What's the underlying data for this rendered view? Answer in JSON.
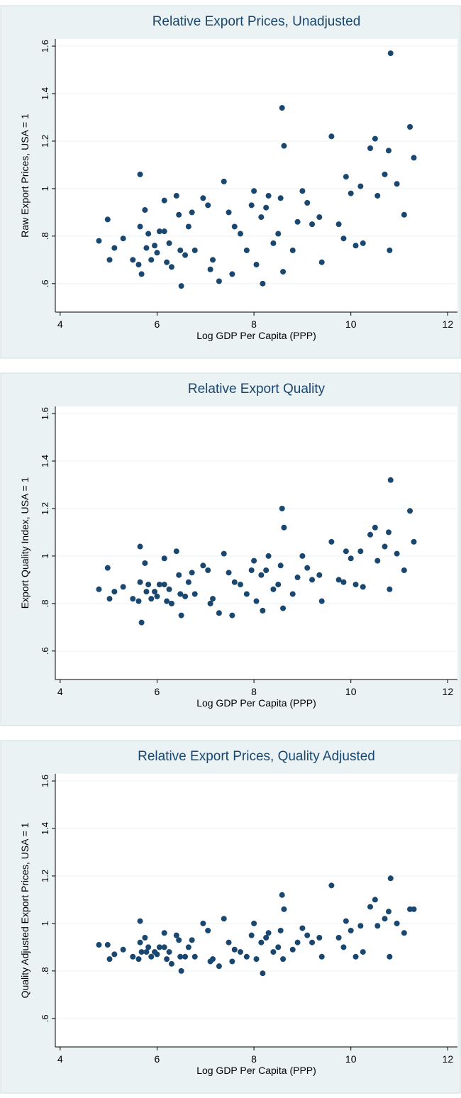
{
  "chart_data": [
    {
      "type": "scatter",
      "title": "Relative Export Prices, Unadjusted",
      "x_label": "Log GDP Per Capita (PPP)",
      "y_label": "Raw Export Prices, USA = 1",
      "color": "#1a476f",
      "grid": true,
      "xlim": [
        3.9,
        12.2
      ],
      "ylim": [
        0.48,
        1.63
      ],
      "xticks": [
        4,
        6,
        8,
        10,
        12
      ],
      "yticks": [
        {
          "value": 0.6,
          "label": ".6"
        },
        {
          "value": 0.8,
          "label": ".8"
        },
        1,
        1.2,
        1.4,
        1.6
      ],
      "x": [
        4.8,
        4.98,
        5.02,
        5.12,
        5.3,
        5.5,
        5.62,
        5.65,
        5.65,
        5.68,
        5.75,
        5.78,
        5.82,
        5.88,
        5.95,
        6.0,
        6.05,
        6.15,
        6.15,
        6.2,
        6.25,
        6.3,
        6.4,
        6.45,
        6.48,
        6.5,
        6.58,
        6.65,
        6.72,
        6.78,
        6.95,
        7.05,
        7.1,
        7.15,
        7.28,
        7.38,
        7.48,
        7.55,
        7.6,
        7.72,
        7.85,
        7.95,
        8.0,
        8.05,
        8.15,
        8.18,
        8.25,
        8.3,
        8.4,
        8.5,
        8.55,
        8.58,
        8.6,
        8.62,
        8.8,
        8.9,
        9.0,
        9.1,
        9.2,
        9.35,
        9.4,
        9.6,
        9.75,
        9.85,
        9.9,
        10.0,
        10.1,
        10.2,
        10.25,
        10.4,
        10.5,
        10.55,
        10.7,
        10.78,
        10.8,
        10.82,
        10.95,
        11.1,
        11.22,
        11.3
      ],
      "y": [
        0.78,
        0.87,
        0.7,
        0.75,
        0.79,
        0.7,
        0.68,
        1.06,
        0.84,
        0.64,
        0.91,
        0.75,
        0.81,
        0.7,
        0.76,
        0.73,
        0.82,
        0.95,
        0.82,
        0.69,
        0.77,
        0.67,
        0.97,
        0.89,
        0.74,
        0.59,
        0.72,
        0.84,
        0.9,
        0.74,
        0.96,
        0.93,
        0.66,
        0.7,
        0.61,
        1.03,
        0.9,
        0.64,
        0.84,
        0.81,
        0.74,
        0.93,
        0.99,
        0.68,
        0.88,
        0.6,
        0.92,
        0.97,
        0.77,
        0.81,
        0.96,
        1.34,
        0.65,
        1.18,
        0.74,
        0.86,
        0.99,
        0.94,
        0.85,
        0.88,
        0.69,
        1.22,
        0.85,
        0.79,
        1.05,
        0.98,
        0.76,
        1.01,
        0.77,
        1.17,
        1.21,
        0.97,
        1.06,
        1.16,
        0.74,
        1.57,
        1.02,
        0.89,
        1.26,
        1.13
      ]
    },
    {
      "type": "scatter",
      "title": "Relative Export Quality",
      "x_label": "Log GDP Per Capita (PPP)",
      "y_label": "Export Quality Index, USA = 1",
      "color": "#1a476f",
      "grid": true,
      "xlim": [
        3.9,
        12.2
      ],
      "ylim": [
        0.48,
        1.63
      ],
      "xticks": [
        4,
        6,
        8,
        10,
        12
      ],
      "yticks": [
        {
          "value": 0.6,
          "label": ".6"
        },
        {
          "value": 0.8,
          "label": ".8"
        },
        1,
        1.2,
        1.4,
        1.6
      ],
      "x": [
        4.8,
        4.98,
        5.02,
        5.12,
        5.3,
        5.5,
        5.62,
        5.65,
        5.65,
        5.68,
        5.75,
        5.78,
        5.82,
        5.88,
        5.95,
        6.0,
        6.05,
        6.15,
        6.15,
        6.2,
        6.25,
        6.3,
        6.4,
        6.45,
        6.48,
        6.5,
        6.58,
        6.65,
        6.72,
        6.78,
        6.95,
        7.05,
        7.1,
        7.15,
        7.28,
        7.38,
        7.48,
        7.55,
        7.6,
        7.72,
        7.85,
        7.95,
        8.0,
        8.05,
        8.15,
        8.18,
        8.25,
        8.3,
        8.4,
        8.5,
        8.55,
        8.58,
        8.6,
        8.62,
        8.8,
        8.9,
        9.0,
        9.1,
        9.2,
        9.35,
        9.4,
        9.6,
        9.75,
        9.85,
        9.9,
        10.0,
        10.1,
        10.2,
        10.25,
        10.4,
        10.5,
        10.55,
        10.7,
        10.78,
        10.8,
        10.82,
        10.95,
        11.1,
        11.22,
        11.3
      ],
      "y": [
        0.86,
        0.95,
        0.82,
        0.85,
        0.87,
        0.82,
        0.81,
        1.04,
        0.89,
        0.72,
        0.97,
        0.85,
        0.88,
        0.82,
        0.85,
        0.83,
        0.88,
        0.99,
        0.88,
        0.81,
        0.86,
        0.8,
        1.02,
        0.92,
        0.84,
        0.75,
        0.83,
        0.89,
        0.93,
        0.84,
        0.96,
        0.94,
        0.8,
        0.82,
        0.76,
        1.01,
        0.93,
        0.75,
        0.89,
        0.88,
        0.84,
        0.94,
        0.98,
        0.81,
        0.92,
        0.77,
        0.94,
        1.0,
        0.86,
        0.88,
        0.96,
        1.2,
        0.78,
        1.12,
        0.84,
        0.91,
        1.0,
        0.95,
        0.9,
        0.92,
        0.81,
        1.06,
        0.9,
        0.89,
        1.02,
        0.99,
        0.88,
        1.02,
        0.87,
        1.09,
        1.12,
        0.98,
        1.04,
        1.1,
        0.86,
        1.32,
        1.01,
        0.94,
        1.19,
        1.06
      ]
    },
    {
      "type": "scatter",
      "title": "Relative Export Prices, Quality Adjusted",
      "x_label": "Log GDP Per Capita (PPP)",
      "y_label": "Quality Adjusted Export Prices, USA = 1",
      "color": "#1a476f",
      "grid": true,
      "xlim": [
        3.9,
        12.2
      ],
      "ylim": [
        0.48,
        1.63
      ],
      "xticks": [
        4,
        6,
        8,
        10,
        12
      ],
      "yticks": [
        {
          "value": 0.6,
          "label": ".6"
        },
        {
          "value": 0.8,
          "label": ".8"
        },
        1,
        1.2,
        1.4,
        1.6
      ],
      "x": [
        4.8,
        4.98,
        5.02,
        5.12,
        5.3,
        5.5,
        5.62,
        5.65,
        5.65,
        5.68,
        5.75,
        5.78,
        5.82,
        5.88,
        5.95,
        6.0,
        6.05,
        6.15,
        6.15,
        6.2,
        6.25,
        6.3,
        6.4,
        6.45,
        6.48,
        6.5,
        6.58,
        6.65,
        6.72,
        6.78,
        6.95,
        7.05,
        7.1,
        7.15,
        7.28,
        7.38,
        7.48,
        7.55,
        7.6,
        7.72,
        7.85,
        7.95,
        8.0,
        8.05,
        8.15,
        8.18,
        8.25,
        8.3,
        8.4,
        8.5,
        8.55,
        8.58,
        8.6,
        8.62,
        8.8,
        8.9,
        9.0,
        9.1,
        9.2,
        9.35,
        9.4,
        9.6,
        9.75,
        9.85,
        9.9,
        10.0,
        10.1,
        10.2,
        10.25,
        10.4,
        10.5,
        10.55,
        10.7,
        10.78,
        10.8,
        10.82,
        10.95,
        11.1,
        11.22,
        11.3
      ],
      "y": [
        0.91,
        0.91,
        0.85,
        0.87,
        0.89,
        0.86,
        0.85,
        1.01,
        0.92,
        0.88,
        0.94,
        0.88,
        0.9,
        0.86,
        0.88,
        0.87,
        0.9,
        0.96,
        0.9,
        0.85,
        0.88,
        0.83,
        0.95,
        0.93,
        0.86,
        0.8,
        0.86,
        0.9,
        0.93,
        0.86,
        1.0,
        0.97,
        0.84,
        0.85,
        0.82,
        1.02,
        0.92,
        0.84,
        0.89,
        0.88,
        0.86,
        0.95,
        1.0,
        0.85,
        0.92,
        0.79,
        0.94,
        0.96,
        0.88,
        0.9,
        0.97,
        1.12,
        0.85,
        1.06,
        0.89,
        0.92,
        0.98,
        0.95,
        0.92,
        0.94,
        0.86,
        1.16,
        0.94,
        0.9,
        1.01,
        0.97,
        0.86,
        0.99,
        0.88,
        1.07,
        1.1,
        0.99,
        1.02,
        1.05,
        0.86,
        1.19,
        1.0,
        0.96,
        1.06,
        1.06
      ]
    }
  ]
}
